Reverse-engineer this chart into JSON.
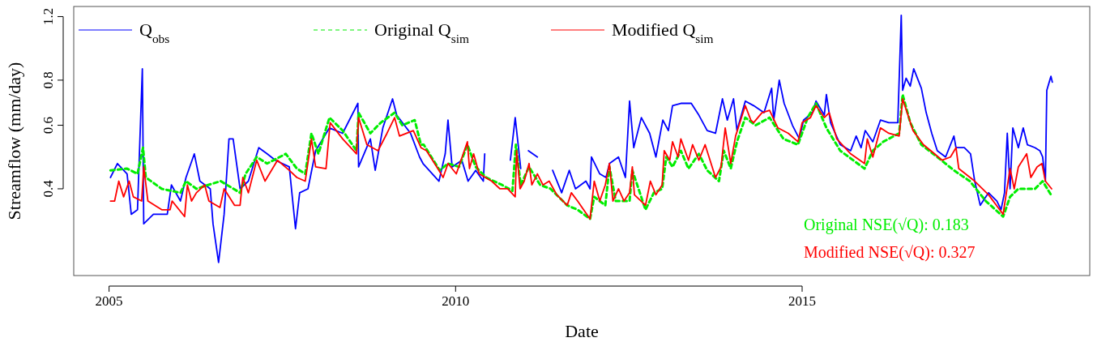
{
  "chart_data": {
    "type": "line",
    "xlabel": "Date",
    "ylabel": "Streamflow (mm/day)",
    "log": true,
    "grid": false,
    "legend": "top",
    "marker": "none",
    "xlim": [
      2004.49,
      2019.15
    ],
    "xticks": [
      2005,
      2010,
      2015
    ],
    "ylim": [
      0.23,
      1.28
    ],
    "yticks": [
      0.4,
      0.6,
      0.8,
      1.2
    ],
    "annotations": [
      "Original NSE(√Q): 0.183",
      "Modified NSE(√Q): 0.327"
    ],
    "series": [
      {
        "name": "Q$_{obs}$",
        "color": "#0000ff",
        "line_style": "solid",
        "x": [
          2005.02,
          2005.12,
          2005.26,
          2005.32,
          2005.41,
          2005.48,
          2005.5,
          2005.64,
          2005.84,
          2005.9,
          2006.03,
          2006.11,
          2006.23,
          2006.31,
          2006.46,
          2006.5,
          2006.58,
          2006.66,
          2006.73,
          2006.79,
          2006.89,
          2007.01,
          2007.16,
          2007.28,
          2007.4,
          2007.6,
          2007.69,
          2007.75,
          2007.87,
          2007.98,
          2008.18,
          2008.37,
          2008.59,
          2008.6,
          2008.77,
          2008.84,
          2008.95,
          2009.09,
          2009.15,
          2009.35,
          2009.48,
          2009.53,
          2009.76,
          2009.85,
          2009.89,
          2009.95,
          2010.09,
          2010.18,
          2010.29,
          2010.4,
          2010.42,
          2010.6,
          2010.79,
          2010.86,
          2010.94,
          2011.0,
          2011.05,
          2011.18,
          2011.3,
          2011.4,
          2011.53,
          2011.64,
          2011.73,
          2011.88,
          2011.94,
          2011.96,
          2012.08,
          2012.17,
          2012.22,
          2012.35,
          2012.45,
          2012.51,
          2012.57,
          2012.68,
          2012.8,
          2012.89,
          2012.99,
          2013.07,
          2013.13,
          2013.25,
          2013.4,
          2013.51,
          2013.63,
          2013.75,
          2013.85,
          2013.92,
          2014.01,
          2014.06,
          2014.18,
          2014.3,
          2014.45,
          2014.56,
          2014.59,
          2014.67,
          2014.74,
          2014.86,
          2014.96,
          2015.02,
          2015.15,
          2015.2,
          2015.32,
          2015.35,
          2015.41,
          2015.55,
          2015.7,
          2015.78,
          2015.85,
          2015.91,
          2016.02,
          2016.13,
          2016.25,
          2016.38,
          2016.43,
          2016.45,
          2016.5,
          2016.56,
          2016.61,
          2016.72,
          2016.79,
          2016.87,
          2016.95,
          2017.07,
          2017.19,
          2017.22,
          2017.34,
          2017.43,
          2017.49,
          2017.57,
          2017.69,
          2017.81,
          2017.87,
          2017.92,
          2017.96,
          2018.0,
          2018.04,
          2018.12,
          2018.19,
          2018.25,
          2018.36,
          2018.43,
          2018.47,
          2018.51,
          2018.53,
          2018.59,
          2018.61
        ],
        "values": [
          0.43,
          0.47,
          0.44,
          0.34,
          0.35,
          0.86,
          0.32,
          0.34,
          0.34,
          0.41,
          0.37,
          0.43,
          0.5,
          0.42,
          0.4,
          0.32,
          0.25,
          0.34,
          0.55,
          0.55,
          0.4,
          0.42,
          0.52,
          0.5,
          0.48,
          0.46,
          0.31,
          0.39,
          0.4,
          0.51,
          0.59,
          0.57,
          0.69,
          0.46,
          0.55,
          0.45,
          0.59,
          0.71,
          0.64,
          0.57,
          0.49,
          0.47,
          0.42,
          0.5,
          0.62,
          0.46,
          0.48,
          0.42,
          0.45,
          0.42,
          0.5,
          null,
          0.48,
          0.63,
          0.455,
          null,
          0.51,
          0.49,
          null,
          0.45,
          0.39,
          0.45,
          0.4,
          0.42,
          0.4,
          0.49,
          0.44,
          0.43,
          0.47,
          0.49,
          0.43,
          0.7,
          0.52,
          0.63,
          0.57,
          0.49,
          0.62,
          0.58,
          0.68,
          0.69,
          0.69,
          0.64,
          0.58,
          0.57,
          0.71,
          0.62,
          0.71,
          0.58,
          0.7,
          0.68,
          0.65,
          0.76,
          0.62,
          0.8,
          0.69,
          0.6,
          0.55,
          0.62,
          0.65,
          0.7,
          0.64,
          0.73,
          0.61,
          0.53,
          0.51,
          0.56,
          0.52,
          0.58,
          0.54,
          0.62,
          0.61,
          0.61,
          1.21,
          0.75,
          0.81,
          0.77,
          0.86,
          0.76,
          0.65,
          0.57,
          0.51,
          0.49,
          0.56,
          0.52,
          0.52,
          0.5,
          0.42,
          0.36,
          0.39,
          0.37,
          0.35,
          0.39,
          0.57,
          0.4,
          0.59,
          0.52,
          0.59,
          0.53,
          0.52,
          0.51,
          0.49,
          0.42,
          0.75,
          0.82,
          0.79
        ]
      },
      {
        "name": "Original Q$_{sim}$",
        "color": "#00ee00",
        "line_style": "dashed",
        "x": [
          2005.02,
          2005.26,
          2005.41,
          2005.49,
          2005.53,
          2005.76,
          2006.03,
          2006.11,
          2006.26,
          2006.43,
          2006.61,
          2006.89,
          2006.97,
          2007.13,
          2007.28,
          2007.55,
          2007.71,
          2007.83,
          2007.92,
          2008.02,
          2008.18,
          2008.37,
          2008.57,
          2008.6,
          2008.77,
          2008.92,
          2009.12,
          2009.23,
          2009.41,
          2009.5,
          2009.54,
          2009.77,
          2009.89,
          2010.05,
          2010.17,
          2010.29,
          2010.44,
          2010.67,
          2010.82,
          2010.87,
          2010.94,
          2011.06,
          2011.22,
          2011.37,
          2011.61,
          2011.76,
          2011.94,
          2012.0,
          2012.16,
          2012.22,
          2012.31,
          2012.51,
          2012.55,
          2012.74,
          2012.86,
          2012.98,
          2013.04,
          2013.13,
          2013.25,
          2013.36,
          2013.51,
          2013.63,
          2013.8,
          2013.87,
          2013.97,
          2014.06,
          2014.18,
          2014.33,
          2014.53,
          2014.73,
          2014.94,
          2015.08,
          2015.2,
          2015.35,
          2015.55,
          2015.9,
          2016.02,
          2016.17,
          2016.4,
          2016.45,
          2016.56,
          2016.72,
          2016.95,
          2017.19,
          2017.42,
          2017.65,
          2017.9,
          2018.0,
          2018.12,
          2018.36,
          2018.47,
          2018.59
        ],
        "values": [
          0.45,
          0.455,
          0.44,
          0.52,
          0.43,
          0.4,
          0.39,
          0.42,
          0.4,
          0.41,
          0.42,
          0.39,
          0.44,
          0.49,
          0.47,
          0.5,
          0.455,
          0.44,
          0.57,
          0.5,
          0.63,
          0.58,
          0.51,
          0.65,
          0.57,
          0.61,
          0.65,
          0.6,
          0.62,
          0.53,
          0.53,
          0.45,
          0.47,
          0.46,
          0.53,
          0.46,
          0.43,
          0.41,
          0.395,
          0.53,
          0.41,
          0.46,
          0.41,
          0.4,
          0.36,
          0.35,
          0.33,
          0.38,
          0.36,
          0.46,
          0.37,
          0.37,
          0.45,
          0.35,
          0.39,
          0.4,
          0.49,
          0.46,
          0.51,
          0.455,
          0.5,
          0.45,
          0.42,
          0.51,
          0.455,
          0.54,
          0.63,
          0.6,
          0.63,
          0.55,
          0.53,
          0.63,
          0.69,
          0.59,
          0.51,
          0.455,
          0.51,
          0.54,
          0.57,
          0.73,
          0.61,
          0.53,
          0.49,
          0.45,
          0.42,
          0.37,
          0.335,
          0.38,
          0.4,
          0.4,
          0.42,
          0.385
        ]
      },
      {
        "name": "Modified Q$_{sim}$",
        "color": "#ff0000",
        "line_style": "solid",
        "x": [
          2005.02,
          2005.08,
          2005.14,
          2005.21,
          2005.29,
          2005.35,
          2005.47,
          2005.5,
          2005.56,
          2005.76,
          2005.88,
          2005.91,
          2006.09,
          2006.13,
          2006.19,
          2006.26,
          2006.38,
          2006.44,
          2006.6,
          2006.66,
          2006.81,
          2006.89,
          2006.93,
          2007.01,
          2007.13,
          2007.25,
          2007.43,
          2007.6,
          2007.71,
          2007.83,
          2007.92,
          2007.98,
          2008.13,
          2008.19,
          2008.37,
          2008.57,
          2008.6,
          2008.72,
          2008.88,
          2009.01,
          2009.12,
          2009.19,
          2009.39,
          2009.5,
          2009.58,
          2009.76,
          2009.82,
          2009.89,
          2010.01,
          2010.17,
          2010.2,
          2010.26,
          2010.34,
          2010.52,
          2010.64,
          2010.75,
          2010.86,
          2010.88,
          2010.93,
          2010.99,
          2011.06,
          2011.1,
          2011.18,
          2011.26,
          2011.35,
          2011.46,
          2011.61,
          2011.67,
          2011.76,
          2011.94,
          2012.0,
          2012.08,
          2012.16,
          2012.22,
          2012.27,
          2012.35,
          2012.43,
          2012.51,
          2012.55,
          2012.58,
          2012.74,
          2012.81,
          2012.89,
          2012.98,
          2013.01,
          2013.09,
          2013.13,
          2013.21,
          2013.25,
          2013.36,
          2013.42,
          2013.51,
          2013.6,
          2013.75,
          2013.83,
          2013.89,
          2013.97,
          2014.04,
          2014.18,
          2014.26,
          2014.3,
          2014.42,
          2014.53,
          2014.65,
          2014.8,
          2014.94,
          2015.0,
          2015.12,
          2015.2,
          2015.32,
          2015.39,
          2015.5,
          2015.7,
          2015.9,
          2015.94,
          2016.02,
          2016.13,
          2016.25,
          2016.4,
          2016.45,
          2016.6,
          2016.75,
          2016.91,
          2017.02,
          2017.14,
          2017.22,
          2017.26,
          2017.49,
          2017.69,
          2017.9,
          2018.0,
          2018.06,
          2018.12,
          2018.24,
          2018.3,
          2018.39,
          2018.46,
          2018.51,
          2018.6
        ],
        "values": [
          0.37,
          0.37,
          0.42,
          0.38,
          0.42,
          0.38,
          0.37,
          0.46,
          0.37,
          0.35,
          0.35,
          0.37,
          0.335,
          0.41,
          0.37,
          0.39,
          0.41,
          0.37,
          0.355,
          0.4,
          0.36,
          0.36,
          0.43,
          0.39,
          0.48,
          0.42,
          0.48,
          0.45,
          0.43,
          0.42,
          0.55,
          0.46,
          0.455,
          0.61,
          0.55,
          0.5,
          0.63,
          0.53,
          0.51,
          0.57,
          0.63,
          0.56,
          0.58,
          0.52,
          0.51,
          0.45,
          0.43,
          0.47,
          0.44,
          0.54,
          0.455,
          0.5,
          0.44,
          0.42,
          0.4,
          0.4,
          0.38,
          0.51,
          0.4,
          0.42,
          0.47,
          0.41,
          0.44,
          0.41,
          0.42,
          0.385,
          0.36,
          0.39,
          0.37,
          0.33,
          0.42,
          0.37,
          0.41,
          0.47,
          0.37,
          0.4,
          0.37,
          0.39,
          0.46,
          0.385,
          0.36,
          0.42,
          0.385,
          0.41,
          0.51,
          0.48,
          0.54,
          0.49,
          0.55,
          0.48,
          0.53,
          0.48,
          0.53,
          0.43,
          0.46,
          0.59,
          0.47,
          0.56,
          0.68,
          0.62,
          0.61,
          0.65,
          0.66,
          0.59,
          0.57,
          0.54,
          0.61,
          0.63,
          0.68,
          0.63,
          0.65,
          0.55,
          0.5,
          0.47,
          0.55,
          0.49,
          0.59,
          0.57,
          0.56,
          0.71,
          0.58,
          0.53,
          0.5,
          0.48,
          0.49,
          0.52,
          0.455,
          0.42,
          0.385,
          0.34,
          0.455,
          0.4,
          0.46,
          0.5,
          0.43,
          0.46,
          0.47,
          0.42,
          0.4
        ]
      }
    ]
  }
}
